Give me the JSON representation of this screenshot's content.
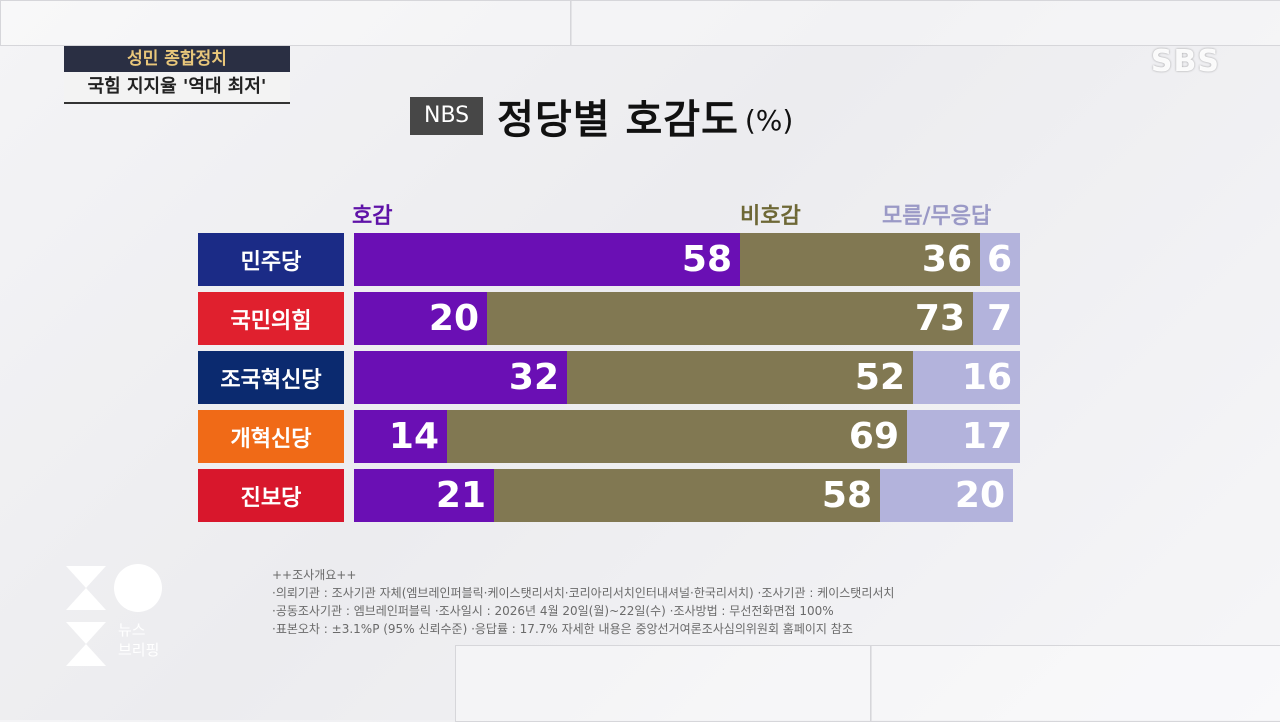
{
  "corner_tag": {
    "program": "성민 종합정치",
    "headline": "국힘 지지율 '역대 최저'"
  },
  "broadcaster": "SBS",
  "title": {
    "badge": "NBS",
    "text": "정당별 호감도",
    "unit": "(%)"
  },
  "brand": {
    "line1": "뉴스",
    "line2": "브리핑"
  },
  "colors": {
    "favorable": "#6a0fb4",
    "unfavorable": "#817852",
    "dont_know": "#b3b3dc"
  },
  "chart_data": {
    "type": "bar",
    "orientation": "horizontal",
    "stacked": true,
    "title": "정당별 호감도",
    "unit": "(%)",
    "categories": [
      "민주당",
      "국민의힘",
      "조국혁신당",
      "개혁신당",
      "진보당"
    ],
    "series": [
      {
        "name": "호감",
        "values": [
          58,
          20,
          32,
          14,
          21
        ]
      },
      {
        "name": "비호감",
        "values": [
          36,
          73,
          52,
          69,
          58
        ]
      },
      {
        "name": "모름/무응답",
        "values": [
          6,
          7,
          16,
          17,
          20
        ]
      }
    ],
    "party_colors": [
      "#1b2b86",
      "#e0202e",
      "#0b2a6f",
      "#f06a17",
      "#d8172c"
    ],
    "xlim": [
      0,
      100
    ],
    "legend_position": "top"
  },
  "footnote": {
    "heading": "++조사개요++",
    "lines": [
      "·의뢰기관 : 조사기관 자체(엠브레인퍼블릭·케이스탯리서치·코리아리서치인터내셔널·한국리서치)   ·조사기관 : 케이스탯리서치",
      "·공동조사기관 : 엠브레인퍼블릭   ·조사일시 : 2026년 4월 20일(월)~22일(수)   ·조사방법 : 무선전화면접 100%",
      "·표본오차 : ±3.1%P (95% 신뢰수준)   ·응답률 : 17.7%   자세한 내용은 중앙선거여론조사심의위원회 홈페이지 참조"
    ]
  }
}
